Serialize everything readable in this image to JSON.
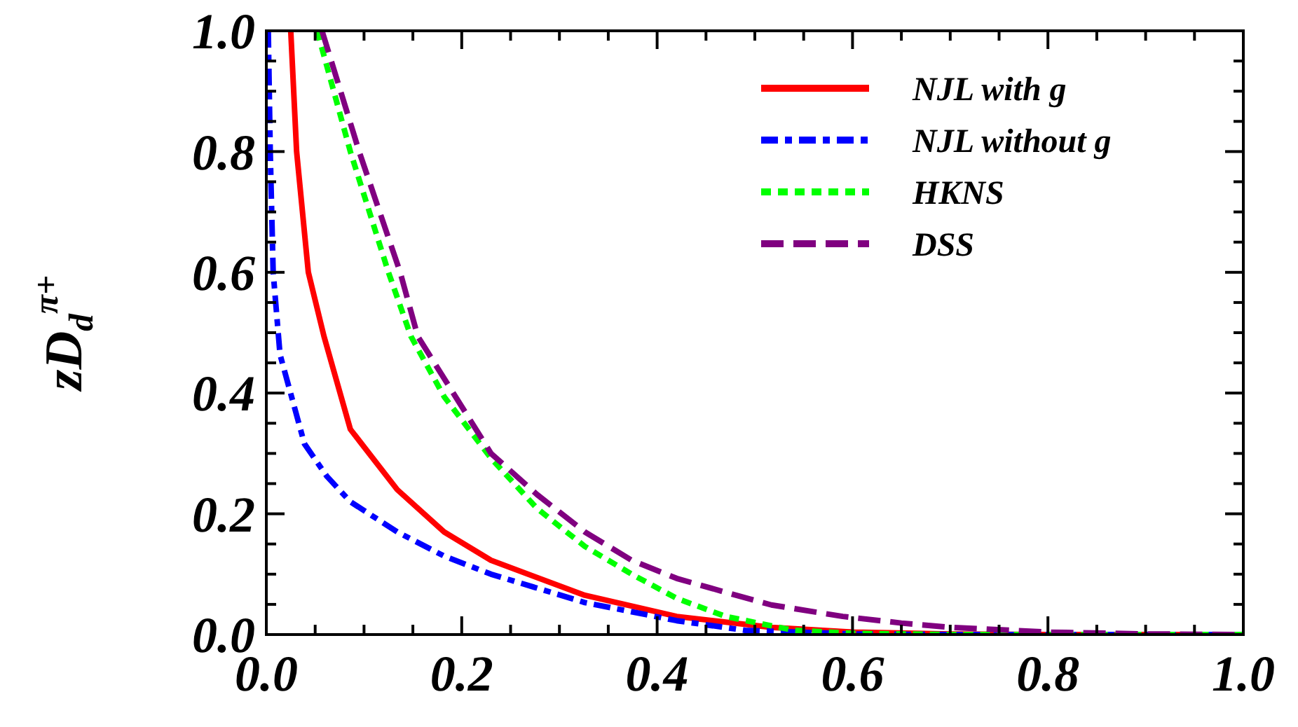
{
  "chart_data": {
    "type": "line",
    "ylabel": "zD$_{d}$$^{π+}$",
    "xlim": [
      0,
      1
    ],
    "ylim": [
      0,
      1
    ],
    "xticks": [
      {
        "value": 0,
        "label": "0.0"
      },
      {
        "value": 0.05,
        "label": null
      },
      {
        "value": 0.1,
        "label": null
      },
      {
        "value": 0.15,
        "label": null
      },
      {
        "value": 0.2,
        "label": "0.2"
      },
      {
        "value": 0.25,
        "label": null
      },
      {
        "value": 0.3,
        "label": null
      },
      {
        "value": 0.35,
        "label": null
      },
      {
        "value": 0.4,
        "label": "0.4"
      },
      {
        "value": 0.45,
        "label": null
      },
      {
        "value": 0.5,
        "label": null
      },
      {
        "value": 0.55,
        "label": null
      },
      {
        "value": 0.6,
        "label": "0.6"
      },
      {
        "value": 0.65,
        "label": null
      },
      {
        "value": 0.7,
        "label": null
      },
      {
        "value": 0.75,
        "label": null
      },
      {
        "value": 0.8,
        "label": "0.8"
      },
      {
        "value": 0.85,
        "label": null
      },
      {
        "value": 0.9,
        "label": null
      },
      {
        "value": 0.95,
        "label": null
      },
      {
        "value": 1,
        "label": "1.0"
      }
    ],
    "yticks": [
      {
        "value": 0,
        "label": "0.0"
      },
      {
        "value": 0.05,
        "label": null
      },
      {
        "value": 0.1,
        "label": null
      },
      {
        "value": 0.15,
        "label": null
      },
      {
        "value": 0.2,
        "label": "0.2"
      },
      {
        "value": 0.25,
        "label": null
      },
      {
        "value": 0.3,
        "label": null
      },
      {
        "value": 0.35,
        "label": null
      },
      {
        "value": 0.4,
        "label": "0.4"
      },
      {
        "value": 0.45,
        "label": null
      },
      {
        "value": 0.5,
        "label": null
      },
      {
        "value": 0.55,
        "label": null
      },
      {
        "value": 0.6,
        "label": "0.6"
      },
      {
        "value": 0.65,
        "label": null
      },
      {
        "value": 0.7,
        "label": null
      },
      {
        "value": 0.75,
        "label": null
      },
      {
        "value": 0.8,
        "label": "0.8"
      },
      {
        "value": 0.85,
        "label": null
      },
      {
        "value": 0.9,
        "label": null
      },
      {
        "value": 0.95,
        "label": null
      },
      {
        "value": 1,
        "label": "1.0"
      }
    ],
    "grid": false,
    "legend": "top right",
    "marker": "none",
    "series": [
      {
        "name": "NJL with g",
        "color": "#ff0000",
        "line_style": "solid",
        "x": [
          0.025,
          0.031,
          0.043,
          0.059,
          0.086,
          0.134,
          0.182,
          0.23,
          0.326,
          0.42,
          0.517,
          0.6,
          0.7,
          0.8,
          0.9,
          1
        ],
        "values": [
          1,
          0.8,
          0.6,
          0.494,
          0.34,
          0.24,
          0.17,
          0.123,
          0.065,
          0.03,
          0.012,
          0.004,
          0.001,
          0,
          0,
          0
        ]
      },
      {
        "name": "NJL without g",
        "color": "#0000ff",
        "line_style": "dashdot",
        "x": [
          0.002,
          0.004,
          0.007,
          0.014,
          0.039,
          0.062,
          0.086,
          0.134,
          0.182,
          0.23,
          0.326,
          0.42,
          0.49,
          0.6,
          0.7,
          0.8,
          0.9,
          1
        ],
        "values": [
          1,
          0.8,
          0.6,
          0.464,
          0.316,
          0.262,
          0.22,
          0.17,
          0.13,
          0.1,
          0.053,
          0.023,
          0.007,
          0.001,
          0,
          0,
          0,
          0
        ]
      },
      {
        "name": "HKNS",
        "color": "#00ff00",
        "line_style": "dotted",
        "x": [
          0.052,
          0.086,
          0.125,
          0.148,
          0.182,
          0.23,
          0.277,
          0.326,
          0.374,
          0.42,
          0.47,
          0.54,
          0.6,
          0.7,
          0.8,
          0.9,
          1
        ],
        "values": [
          1,
          0.8,
          0.6,
          0.494,
          0.394,
          0.292,
          0.209,
          0.146,
          0.1,
          0.06,
          0.03,
          0.007,
          0.002,
          0,
          0,
          0,
          0
        ]
      },
      {
        "name": "DSS",
        "color": "#800080",
        "line_style": "dashed",
        "x": [
          0.057,
          0.095,
          0.137,
          0.155,
          0.23,
          0.277,
          0.326,
          0.374,
          0.42,
          0.47,
          0.517,
          0.59,
          0.65,
          0.7,
          0.8,
          0.9,
          1
        ],
        "values": [
          1,
          0.8,
          0.6,
          0.494,
          0.3,
          0.232,
          0.17,
          0.123,
          0.093,
          0.07,
          0.049,
          0.03,
          0.019,
          0.012,
          0.004,
          0.001,
          0
        ]
      }
    ]
  }
}
